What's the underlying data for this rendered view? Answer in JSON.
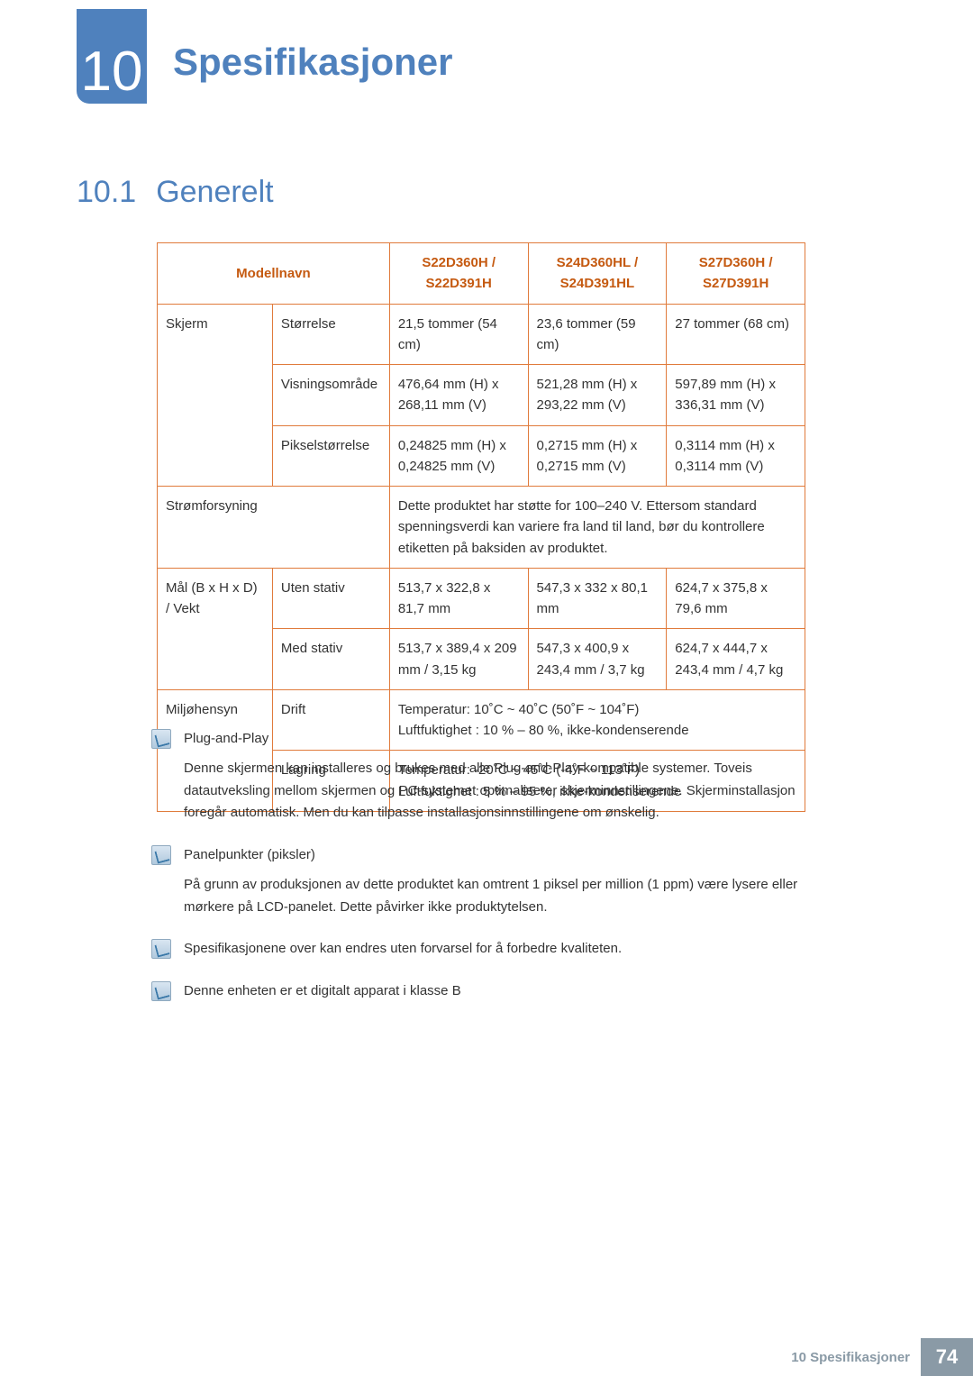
{
  "colors": {
    "accent_blue": "#4f81bd",
    "table_border": "#e07b3c",
    "header_text": "#c55a11",
    "footer_gray": "#8a9aa6"
  },
  "chapter": {
    "number": "10",
    "title": "Spesifikasjoner"
  },
  "section": {
    "number": "10.1",
    "title": "Generelt"
  },
  "table": {
    "headers": {
      "model": "Modellnavn",
      "col1": "S22D360H / S22D391H",
      "col2": "S24D360HL / S24D391HL",
      "col3": "S27D360H / S27D391H"
    },
    "screen_label": "Skjerm",
    "rows": {
      "size": {
        "label": "Størrelse",
        "c1": "21,5 tommer (54 cm)",
        "c2": "23,6 tommer (59 cm)",
        "c3": "27 tommer (68 cm)"
      },
      "display_area": {
        "label": "Visningsområde",
        "c1": "476,64 mm (H) x 268,11 mm (V)",
        "c2": "521,28 mm (H) x 293,22 mm (V)",
        "c3": "597,89 mm (H) x 336,31 mm (V)"
      },
      "pixel": {
        "label": "Pikselstørrelse",
        "c1": "0,24825 mm (H) x 0,24825 mm (V)",
        "c2": "0,2715 mm (H) x 0,2715 mm (V)",
        "c3": "0,3114 mm (H) x 0,3114 mm (V)"
      },
      "power": {
        "label": "Strømforsyning",
        "text": "Dette produktet har støtte for 100–240 V. Ettersom standard spenningsverdi kan variere fra land til land, bør du kontrollere etiketten på baksiden av produktet."
      },
      "dim_label": "Mål (B x H x D) / Vekt",
      "dim_no_stand": {
        "label": "Uten stativ",
        "c1": "513,7 x 322,8 x 81,7 mm",
        "c2": "547,3 x 332 x 80,1 mm",
        "c3": "624,7 x 375,8 x 79,6 mm"
      },
      "dim_stand": {
        "label": "Med stativ",
        "c1": "513,7 x 389,4 x 209 mm / 3,15 kg",
        "c2": "547,3 x 400,9 x 243,4 mm / 3,7 kg",
        "c3": "624,7 x 444,7 x 243,4 mm / 4,7 kg"
      },
      "env_label": "Miljøhensyn",
      "env_op": {
        "label": "Drift",
        "l1": "Temperatur: 10˚C ~ 40˚C (50˚F ~ 104˚F)",
        "l2": "Luftfuktighet : 10 % – 80 %, ikke-kondenserende"
      },
      "env_st": {
        "label": "Lagring",
        "l1": "Temperatur: -20˚C ~ 45˚C (-4˚F ~ 113˚F)",
        "l2": "Luftfuktighet : 5 % – 95 %, ikke-kondenserende"
      }
    }
  },
  "notes": {
    "n1": {
      "title": "Plug-and-Play",
      "body": "Denne skjermen kan installeres og brukes med alle Plug-and-Play-kompatible systemer. Toveis datautveksling mellom skjermen og PC-systemet optimaliserer skjerminnstillingene. Skjerminstallasjon foregår automatisk. Men du kan tilpasse installasjonsinnstillingene om ønskelig."
    },
    "n2": {
      "title": "Panelpunkter (piksler)",
      "body": "På grunn av produksjonen av dette produktet kan omtrent 1 piksel per million (1 ppm) være lysere eller mørkere på LCD-panelet. Dette påvirker ikke produktytelsen."
    },
    "n3": {
      "body": "Spesifikasjonene over kan endres uten forvarsel for å forbedre kvaliteten."
    },
    "n4": {
      "body": "Denne enheten er et digitalt apparat i klasse B"
    }
  },
  "footer": {
    "label": "10 Spesifikasjoner",
    "page": "74"
  }
}
